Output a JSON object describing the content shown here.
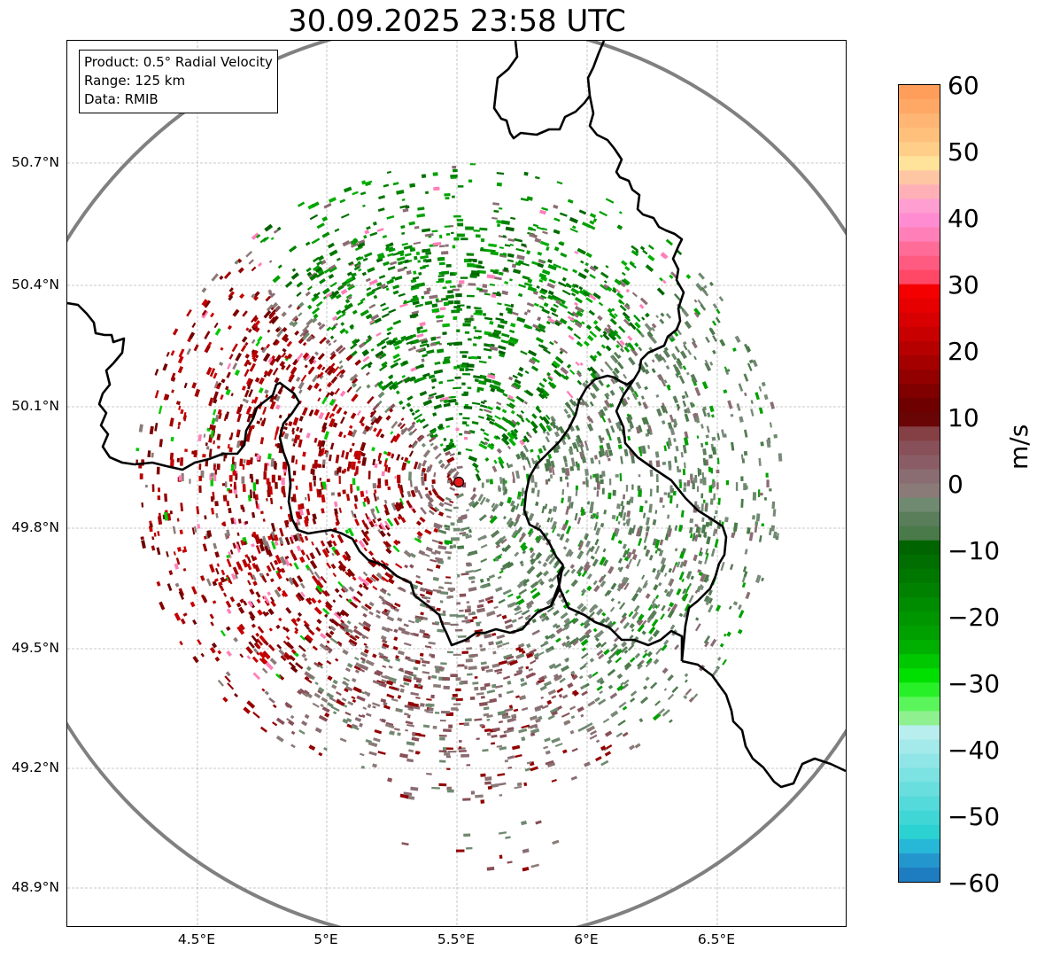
{
  "title": "30.09.2025 23:58 UTC",
  "info": {
    "product": "Product: 0.5° Radial Velocity",
    "range": "Range: 125 km",
    "data_source": "Data: RMIB"
  },
  "axes": {
    "lat_labels": [
      "50.7°N",
      "50.4°N",
      "50.1°N",
      "49.8°N",
      "49.5°N",
      "49.2°N",
      "48.9°N"
    ],
    "lon_labels": [
      "4.5°E",
      "5°E",
      "5.5°E",
      "6°E",
      "6.5°E"
    ]
  },
  "radar_site": {
    "lon": 5.505,
    "lat": 49.914,
    "marker_color": "#e8191c"
  },
  "colorbar": {
    "unit": "m/s",
    "tick_labels": [
      "60",
      "50",
      "40",
      "30",
      "20",
      "10",
      "0",
      "−10",
      "−20",
      "−30",
      "−40",
      "−50",
      "−60"
    ],
    "min": -60,
    "max": 60,
    "colors_top_to_bottom": [
      "#ff9e5a",
      "#ffa866",
      "#ffb574",
      "#ffc07c",
      "#ffce88",
      "#ffe39a",
      "#ffc6a4",
      "#ffb0b6",
      "#ff9ed0",
      "#ff8cd0",
      "#ff7fb8",
      "#ff6c98",
      "#ff5a80",
      "#ff4766",
      "#f40000",
      "#e60000",
      "#d80000",
      "#c80000",
      "#b60000",
      "#a40000",
      "#920000",
      "#800000",
      "#6e0000",
      "#6a0505",
      "#844045",
      "#885058",
      "#8a5d66",
      "#8a6d72",
      "#8b7b78",
      "#6f8a70",
      "#5a7d5a",
      "#4a7a4a",
      "#006400",
      "#006e00",
      "#007800",
      "#008200",
      "#008c00",
      "#009600",
      "#00a000",
      "#00b000",
      "#00c800",
      "#00e000",
      "#28f028",
      "#5af55a",
      "#8ef08e",
      "#b8eeee",
      "#a4eaea",
      "#90e6e6",
      "#7ce2e2",
      "#68dede",
      "#54dada",
      "#40d6d6",
      "#2cd2d2",
      "#26b8d6",
      "#2496ce",
      "#1e7cc0"
    ]
  }
}
